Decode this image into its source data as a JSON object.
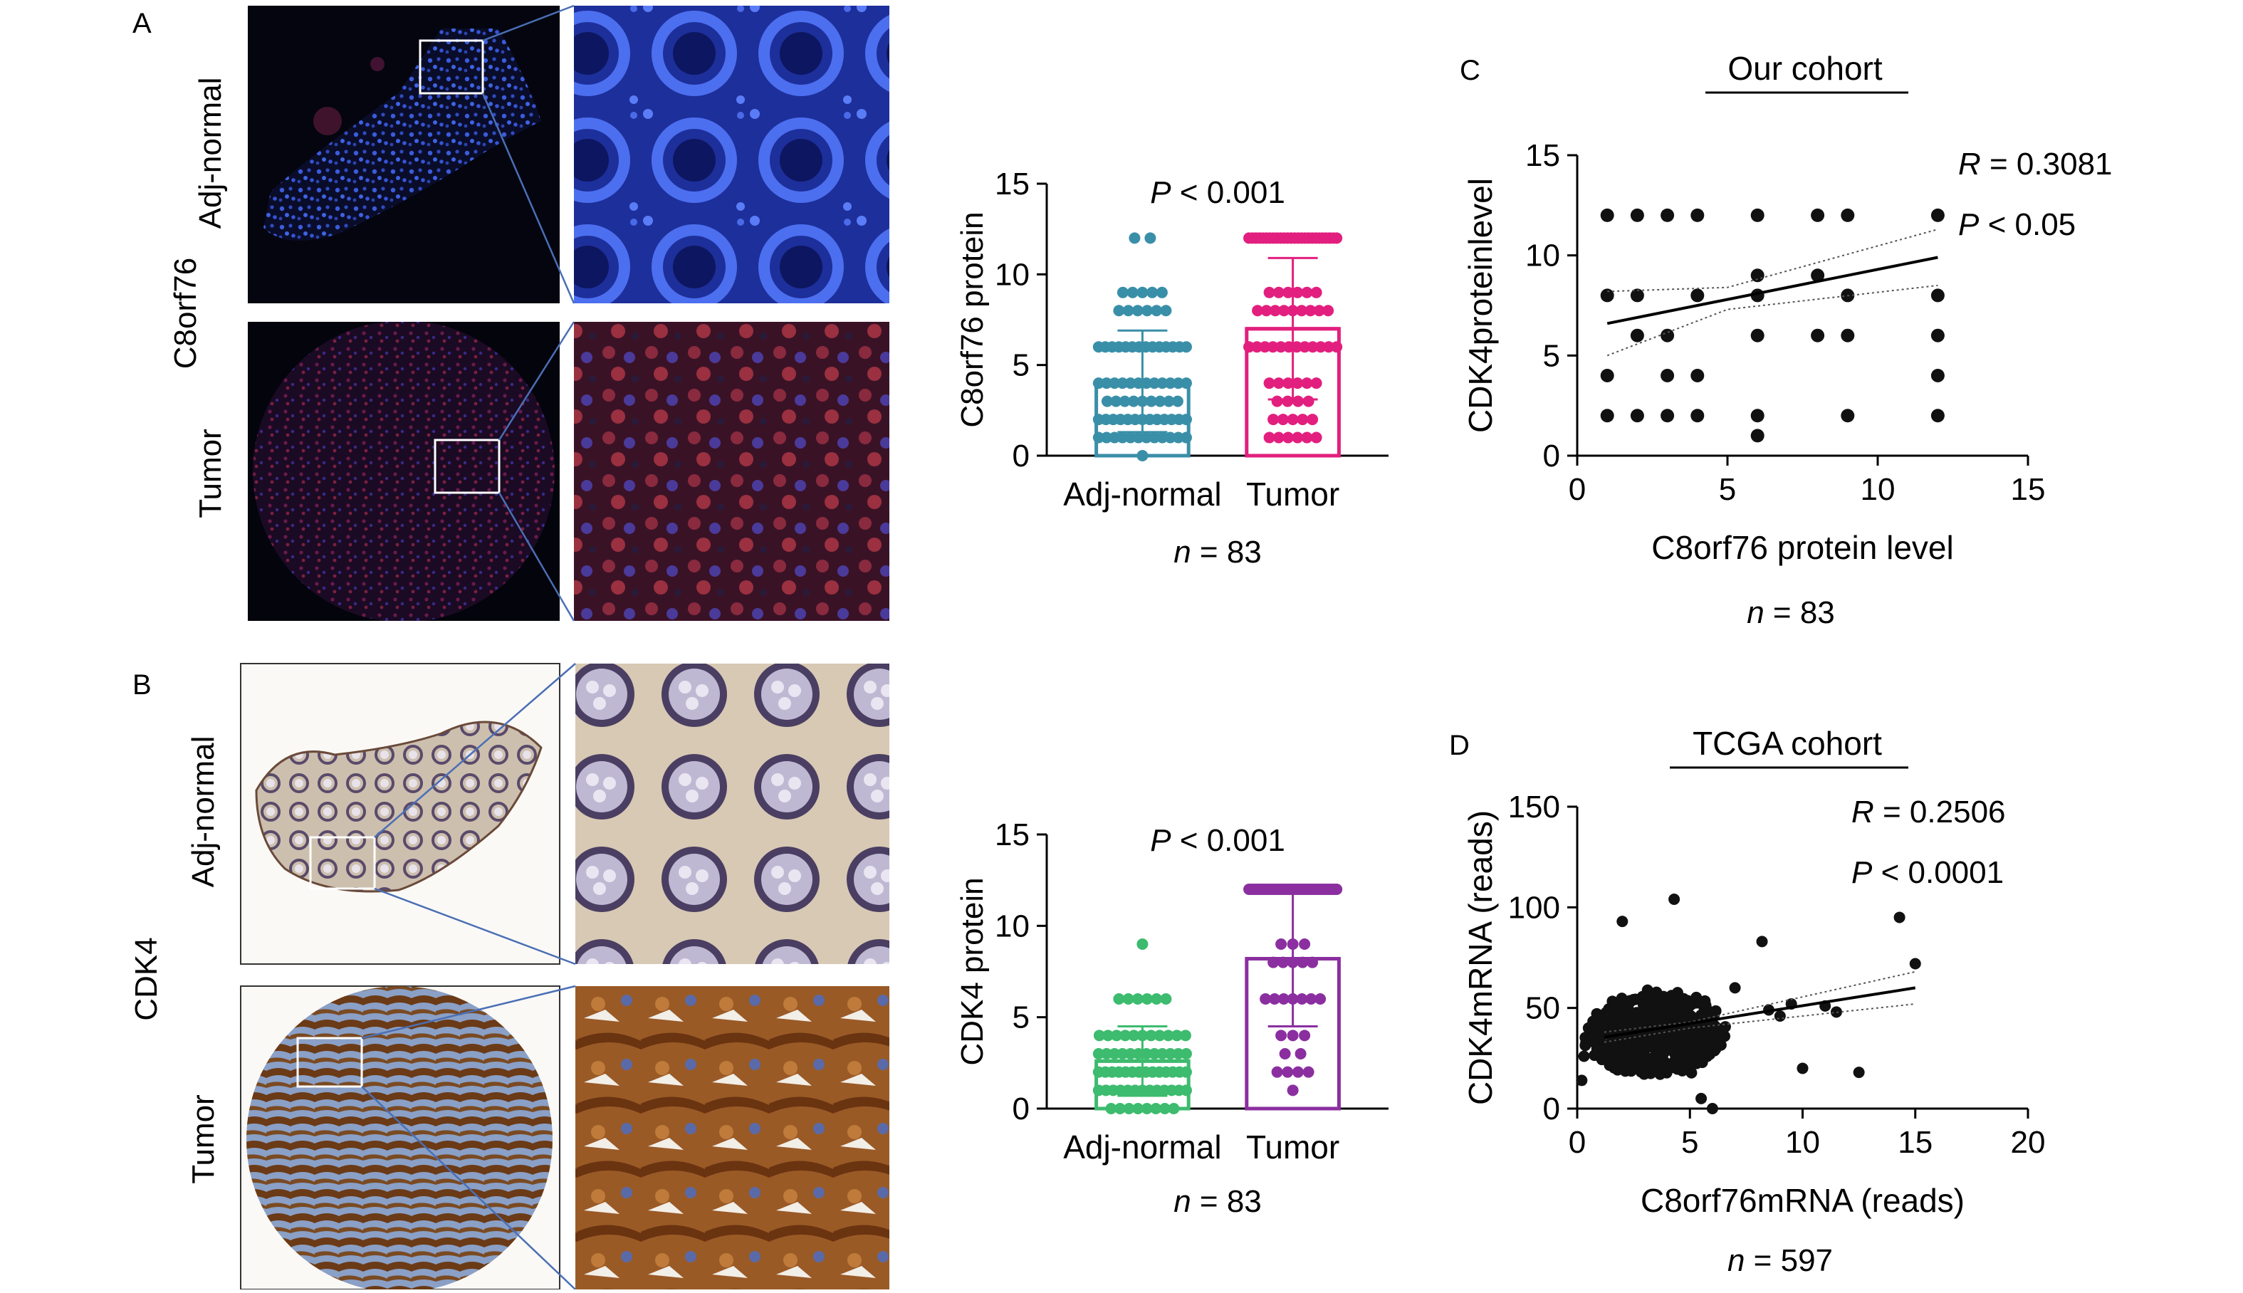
{
  "panels": {
    "A": {
      "letter": "A",
      "row_label": "C8orf76",
      "sample_labels": [
        "Adj-normal",
        "Tumor"
      ],
      "bar_stat": "P < 0.001",
      "bar_n": "n = 83"
    },
    "B": {
      "letter": "B",
      "row_label": "CDK4",
      "sample_labels": [
        "Adj-normal",
        "Tumor"
      ],
      "bar_stat": "P < 0.001",
      "bar_n": "n = 83"
    },
    "C": {
      "letter": "C",
      "heading": "Our cohort",
      "r_text": "R = 0.3081",
      "p_text": "P < 0.05",
      "n_text": "n = 83"
    },
    "D": {
      "letter": "D",
      "heading": "TCGA cohort",
      "r_text": "R = 0.2506",
      "p_text": "P < 0.0001",
      "n_text": "n = 597"
    }
  },
  "colors": {
    "adj_bar_A": "#3a8fa8",
    "tumor_bar_A": "#e21f7e",
    "adj_bar_B": "#3dbb6e",
    "tumor_bar_B": "#8b2fa0",
    "if_nucleus": "#3555d8",
    "if_background": "#07081a",
    "ihc_brown": "#7a4a22",
    "zoom_line": "#4a6fb5"
  },
  "chart_data": [
    {
      "id": "bar-c8orf76",
      "type": "bar",
      "categories": [
        "Adj-normal",
        "Tumor"
      ],
      "values": [
        4.1,
        7.0
      ],
      "errors": [
        2.8,
        3.9
      ],
      "ylabel": "C8orf76 protein",
      "ylim": [
        0,
        15
      ],
      "yticks": [
        0,
        5,
        10,
        15
      ],
      "points": [
        [
          0,
          1,
          1,
          1,
          1,
          1,
          1,
          1,
          1,
          1,
          1,
          1,
          1,
          2,
          2,
          2,
          2,
          2,
          2,
          2,
          2,
          2,
          2,
          2,
          2,
          2,
          3,
          3,
          3,
          3,
          3,
          3,
          3,
          3,
          3,
          4,
          4,
          4,
          4,
          4,
          4,
          4,
          4,
          4,
          4,
          4,
          4,
          6,
          6,
          6,
          6,
          6,
          6,
          6,
          6,
          6,
          6,
          6,
          6,
          6,
          6,
          8,
          8,
          8,
          8,
          8,
          8,
          9,
          9,
          9,
          9,
          9,
          12,
          12
        ],
        [
          1,
          1,
          1,
          1,
          1,
          1,
          2,
          2,
          2,
          2,
          2,
          3,
          3,
          3,
          3,
          4,
          4,
          4,
          4,
          4,
          4,
          6,
          6,
          6,
          6,
          6,
          6,
          6,
          6,
          6,
          6,
          6,
          6,
          8,
          8,
          8,
          8,
          8,
          8,
          8,
          8,
          8,
          9,
          9,
          9,
          9,
          9,
          9,
          12,
          12,
          12,
          12,
          12,
          12,
          12,
          12,
          12,
          12,
          12,
          12,
          12,
          12,
          12,
          12,
          12,
          12,
          12,
          12,
          12,
          12,
          12,
          12,
          12,
          12
        ]
      ]
    },
    {
      "id": "bar-cdk4",
      "type": "bar",
      "categories": [
        "Adj-normal",
        "Tumor"
      ],
      "values": [
        2.6,
        8.2
      ],
      "errors": [
        1.9,
        3.7
      ],
      "ylabel": "CDK4 protein",
      "ylim": [
        0,
        15
      ],
      "yticks": [
        0,
        5,
        10,
        15
      ],
      "points": [
        [
          0,
          0,
          0,
          0,
          0,
          0,
          0,
          0,
          1,
          1,
          1,
          1,
          1,
          1,
          1,
          1,
          1,
          1,
          1,
          1,
          1,
          2,
          2,
          2,
          2,
          2,
          2,
          2,
          2,
          2,
          2,
          2,
          2,
          2,
          2,
          3,
          3,
          3,
          3,
          3,
          3,
          3,
          3,
          3,
          3,
          3,
          3,
          4,
          4,
          4,
          4,
          4,
          4,
          4,
          4,
          4,
          4,
          4,
          6,
          6,
          6,
          6,
          6,
          6,
          9
        ],
        [
          1,
          2,
          2,
          2,
          2,
          3,
          3,
          4,
          4,
          4,
          6,
          6,
          6,
          6,
          6,
          6,
          6,
          8,
          8,
          8,
          8,
          8,
          9,
          9,
          9,
          12,
          12,
          12,
          12,
          12,
          12,
          12,
          12,
          12,
          12,
          12,
          12,
          12,
          12,
          12,
          12,
          12,
          12,
          12,
          12,
          12,
          12,
          12,
          12,
          12,
          12,
          12,
          12,
          12,
          12,
          12,
          12,
          12,
          12,
          12,
          12
        ]
      ]
    },
    {
      "id": "scatter-our-cohort",
      "type": "scatter",
      "title": "Our cohort",
      "xlabel": "C8orf76 protein level",
      "ylabel": "CDK4proteinlevel",
      "xlim": [
        0,
        15
      ],
      "ylim": [
        0,
        15
      ],
      "xticks": [
        0,
        5,
        10,
        15
      ],
      "yticks": [
        0,
        5,
        10,
        15
      ],
      "points": [
        [
          1,
          12
        ],
        [
          2,
          12
        ],
        [
          3,
          12
        ],
        [
          4,
          12
        ],
        [
          6,
          12
        ],
        [
          8,
          12
        ],
        [
          9,
          12
        ],
        [
          12,
          12
        ],
        [
          1,
          8
        ],
        [
          2,
          8
        ],
        [
          4,
          8
        ],
        [
          6,
          8
        ],
        [
          9,
          8
        ],
        [
          12,
          8
        ],
        [
          6,
          9
        ],
        [
          8,
          9
        ],
        [
          2,
          6
        ],
        [
          3,
          6
        ],
        [
          6,
          6
        ],
        [
          8,
          6
        ],
        [
          9,
          6
        ],
        [
          12,
          6
        ],
        [
          1,
          4
        ],
        [
          3,
          4
        ],
        [
          4,
          4
        ],
        [
          12,
          4
        ],
        [
          1,
          2
        ],
        [
          2,
          2
        ],
        [
          3,
          2
        ],
        [
          4,
          2
        ],
        [
          6,
          2
        ],
        [
          9,
          2
        ],
        [
          12,
          2
        ],
        [
          6,
          1
        ]
      ],
      "fit": [
        [
          1,
          6.6
        ],
        [
          12,
          9.9
        ]
      ],
      "ci_upper": [
        [
          1,
          8.2
        ],
        [
          5,
          8.4
        ],
        [
          12,
          11.3
        ]
      ],
      "ci_lower": [
        [
          1,
          5.0
        ],
        [
          5,
          7.3
        ],
        [
          12,
          8.5
        ]
      ]
    },
    {
      "id": "scatter-tcga",
      "type": "scatter",
      "title": "TCGA cohort",
      "xlabel": "C8orf76mRNA (reads)",
      "ylabel": "CDK4mRNA (reads)",
      "xlim": [
        0,
        20
      ],
      "ylim": [
        0,
        150
      ],
      "xticks": [
        0,
        5,
        10,
        15,
        20
      ],
      "yticks": [
        0,
        50,
        100,
        150
      ],
      "n_points": 597,
      "cluster_center": [
        3.5,
        37
      ],
      "outliers": [
        [
          14.3,
          95
        ],
        [
          15,
          72
        ],
        [
          4.3,
          104
        ],
        [
          2,
          93
        ],
        [
          8.2,
          83
        ],
        [
          11,
          51
        ],
        [
          9.5,
          52
        ],
        [
          10,
          20
        ],
        [
          12.5,
          18
        ],
        [
          6,
          0
        ],
        [
          0.2,
          14
        ],
        [
          0.5,
          40
        ],
        [
          0.3,
          26
        ],
        [
          7,
          60
        ],
        [
          9,
          46
        ],
        [
          8.5,
          49
        ],
        [
          5.5,
          5
        ],
        [
          11.5,
          48
        ]
      ],
      "fit": [
        [
          1.2,
          35.5
        ],
        [
          15,
          60
        ]
      ],
      "ci_upper": [
        [
          1.2,
          38
        ],
        [
          5,
          43
        ],
        [
          15,
          68
        ]
      ],
      "ci_lower": [
        [
          1.2,
          33
        ],
        [
          5,
          40
        ],
        [
          15,
          52
        ]
      ]
    }
  ]
}
